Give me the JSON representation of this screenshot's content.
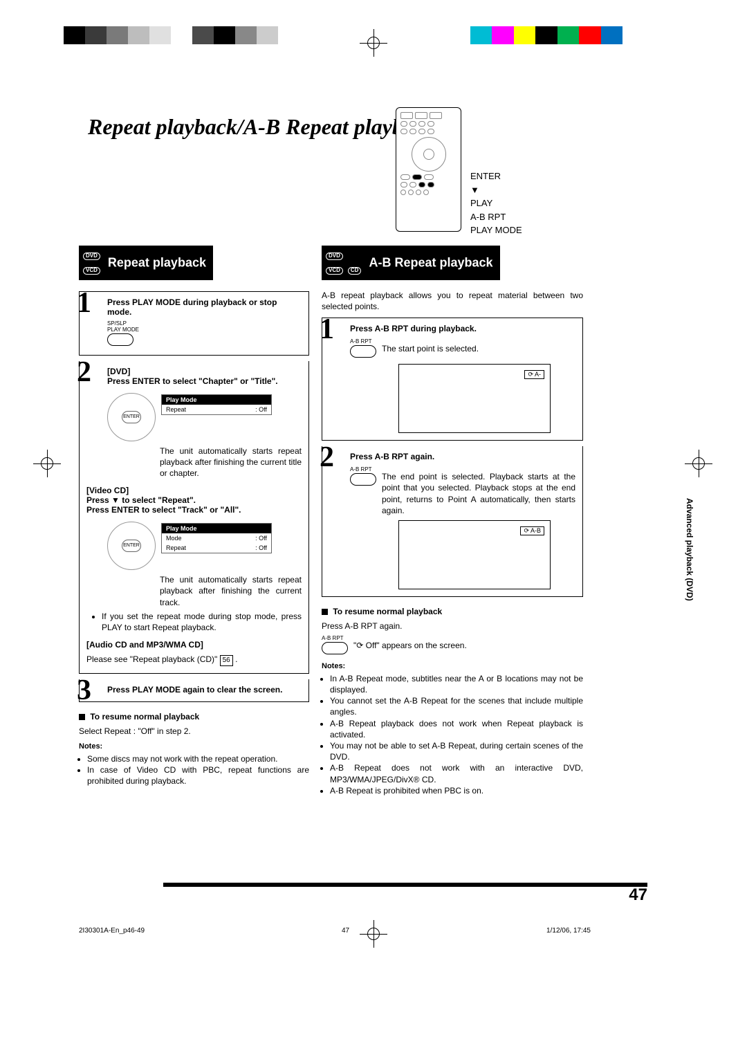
{
  "colorbar1": [
    "#000000",
    "#3a3a3a",
    "#7a7a7a",
    "#bdbdbd",
    "#e0e0e0",
    "#ffffff",
    "#4a4a4a",
    "#000000",
    "#888888",
    "#cccccc"
  ],
  "colorbar2": [
    "#00bcd4",
    "#ff00ff",
    "#ffff00",
    "#000000",
    "#00b04f",
    "#ff0000",
    "#0070c0"
  ],
  "title": "Repeat playback/A-B Repeat playback",
  "remote_labels": [
    "ENTER",
    "▼",
    "PLAY",
    "A-B RPT",
    "PLAY MODE"
  ],
  "left": {
    "header_badges": [
      "DVD",
      "VCD"
    ],
    "header": "Repeat playback",
    "step1": {
      "title": "Press PLAY MODE during playback or stop mode.",
      "btn_lbl_top": "SP/SLP",
      "btn_lbl_bot": "PLAY MODE"
    },
    "step2": {
      "dvd_label": "[DVD]",
      "dvd_title": "Press ENTER to select \"Chapter\" or \"Title\".",
      "pm_head": "Play Mode",
      "pm_row1_k": "Repeat",
      "pm_row1_v": ": Off",
      "dvd_body": "The unit automatically starts repeat playback after finishing the current title or chapter.",
      "vcd_label": "[Video CD]",
      "vcd_t1": "Press ▼ to select \"Repeat\".",
      "vcd_t2": "Press ENTER to select \"Track\" or \"All\".",
      "pm2_head": "Play Mode",
      "pm2_r1k": "Mode",
      "pm2_r1v": ": Off",
      "pm2_r2k": "Repeat",
      "pm2_r2v": ": Off",
      "vcd_body": "The unit automatically starts repeat playback after finishing the current track.",
      "bullet": "If you set the repeat mode during stop mode, press PLAY to start Repeat playback.",
      "cd_label": "[Audio CD and MP3/WMA CD]",
      "cd_body": "Please see \"Repeat playback (CD)\" ",
      "cd_ref": "56"
    },
    "step3": {
      "title": "Press PLAY MODE again to clear the screen."
    },
    "resume": {
      "h": " To resume normal playback",
      "b": "Select Repeat : \"Off\" in step 2."
    },
    "notes_h": "Notes:",
    "notes": [
      "Some discs may not work with the repeat operation.",
      "In case of Video CD with PBC, repeat functions are prohibited during playback."
    ]
  },
  "right": {
    "header_badges": [
      "DVD",
      "VCD",
      "CD"
    ],
    "header": "A-B Repeat playback",
    "intro": "A-B repeat playback allows you to repeat material between two selected points.",
    "step1": {
      "title": "Press A-B RPT during playback.",
      "btn_lbl": "A-B RPT",
      "body": "The start point is selected.",
      "chip": "⟳ A-"
    },
    "step2": {
      "title": "Press A-B RPT again.",
      "btn_lbl": "A-B RPT",
      "body": "The end point is selected. Playback starts at the point that you selected. Playback stops at the end point, returns to Point A automatically, then starts again.",
      "chip": "⟳ A-B"
    },
    "resume": {
      "h": " To resume normal playback",
      "b": "Press A-B RPT again.",
      "btn_lbl": "A-B RPT",
      "off": "\"⟳ Off\" appears on the screen."
    },
    "notes_h": "Notes:",
    "notes": [
      "In A-B Repeat mode, subtitles near the A or B locations may not be displayed.",
      "You cannot set the A-B Repeat for the scenes that include multiple angles.",
      "A-B Repeat playback does not work when Repeat playback is activated.",
      "You may not be able to set A-B Repeat, during certain scenes of the DVD.",
      "A-B Repeat does not work with an interactive DVD, MP3/WMA/JPEG/DivX® CD.",
      "A-B Repeat is prohibited when PBC is on."
    ]
  },
  "side_label": "Advanced playback (DVD)",
  "pagenum": "47",
  "footer": {
    "left": "2I30301A-En_p46-49",
    "mid": "47",
    "right": "1/12/06, 17:45"
  }
}
